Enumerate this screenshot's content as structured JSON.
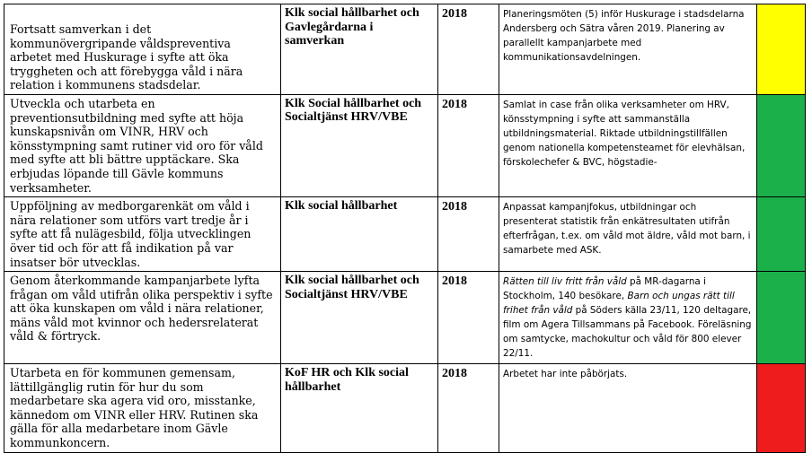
{
  "rows": [
    {
      "goal": "Fortsatt samverkan i det kommunövergripande våldspreventiva arbetet med Huskurage i syfte att öka tryggheten och att förebygga våld i nära relation i kommunens stadsdelar.",
      "responsible": "Klk social hållbarhet och Gavlegårdarna i samverkan",
      "year": "2018",
      "status_parts": [
        "Planeringsmöten (5) inför Huskurage i stadsdelarna Andersberg och Sätra  våren 2019. Planering av parallellt kampanjarbete med kommunikationsavdelningen."
      ],
      "color_name": "yellow",
      "color": "#FFFF00"
    },
    {
      "goal": "Utveckla och utarbeta en preventionsutbildning med syfte att höja kunskapsnivån om VINR, HRV och könsstympning samt rutiner vid oro för våld med syfte att bli bättre upptäckare. Ska erbjudas löpande till Gävle kommuns verksamheter.",
      "responsible": "Klk Social hållbarhet och Socialtjänst HRV/VBE",
      "year": "2018",
      "status_parts": [
        "Samlat in case från olika verksamheter om HRV, könsstympning i syfte att sammanställa utbildningsmaterial. Riktade utbildningstillfällen genom nationella kompetensteamet för elevhälsan, förskolechefer & BVC, högstadie-"
      ],
      "color_name": "green",
      "color": "#1BB04A"
    },
    {
      "goal": "Uppföljning av medborgarenkät om våld i nära relationer som utförs vart tredje år i syfte att få nulägesbild, följa utvecklingen över tid och för att få indikation på var insatser bör utvecklas.",
      "responsible": "Klk social hållbarhet",
      "year": "2018",
      "status_parts": [
        "Anpassat kampanjfokus, utbildningar och presenterat statistik från enkätresultaten utifrån efterfrågan, t.ex. om våld mot äldre, våld mot barn, i samarbete med ASK."
      ],
      "color_name": "green",
      "color": "#1BB04A"
    },
    {
      "goal": "Genom återkommande kampanjarbete lyfta frågan om våld utifrån olika perspektiv i syfte att öka kunskapen om våld i nära relationer, mäns våld mot kvinnor och hedersrelaterat våld & förtryck.",
      "responsible": "Klk social hållbarhet och Socialtjänst HRV/VBE",
      "year": "2018",
      "status_parts": [
        "Rätten till liv fritt från våld",
        " på MR-dagarna i Stockholm, 140 besökare, ",
        "Barn och ungas rätt till frihet från våld",
        " på Söders källa 23/11, 120 deltagare, film om Agera Tillsammans på Facebook. Föreläsning om samtycke, machokultur och våld för 800 elever 22/11."
      ],
      "color_name": "green",
      "color": "#1BB04A"
    },
    {
      "goal": "Utarbeta en för kommunen gemensam, lättillgänglig rutin för hur du som medarbetare ska agera vid oro, misstanke, kännedom om VINR eller HRV. Rutinen ska gälla för alla medarbetare inom Gävle kommunkoncern.",
      "responsible": "KoF HR och Klk social hållbarhet",
      "year": "2018",
      "status_parts": [
        "Arbetet har inte påbörjats."
      ],
      "color_name": "red",
      "color": "#EE1C1C"
    }
  ]
}
